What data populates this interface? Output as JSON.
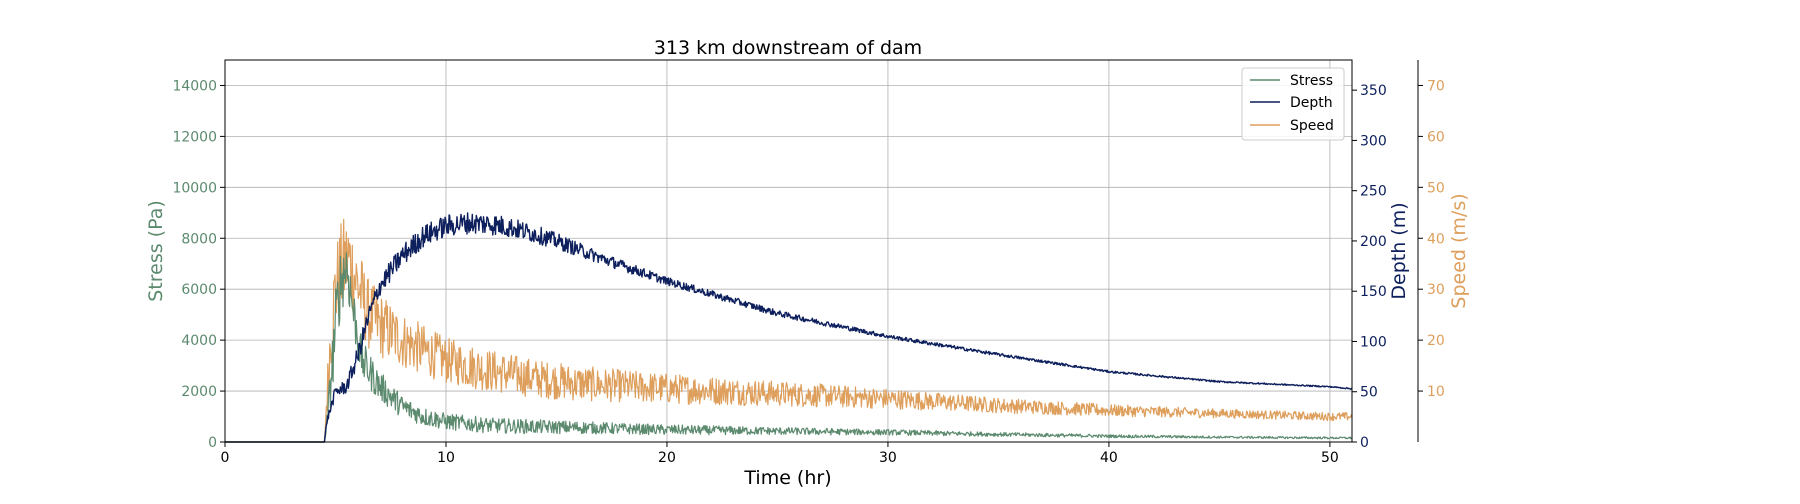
{
  "chart_data": {
    "type": "line",
    "title": "313 km downstream of dam",
    "xlabel": "Time (hr)",
    "xlim": [
      0,
      51
    ],
    "xticks": [
      0,
      10,
      20,
      30,
      40,
      50
    ],
    "grid": true,
    "legend_position": "top-right",
    "axes": {
      "stress": {
        "label": "Stress (Pa)",
        "ylim": [
          0,
          15000
        ],
        "ticks": [
          0,
          2000,
          4000,
          6000,
          8000,
          10000,
          12000,
          14000
        ],
        "color": "#5c8a6e"
      },
      "depth": {
        "label": "Depth (m)",
        "ylim": [
          0,
          380
        ],
        "ticks": [
          0,
          50,
          100,
          150,
          200,
          250,
          300,
          350
        ],
        "color": "#0d1f5c"
      },
      "speed": {
        "label": "Speed (m/s)",
        "ylim": [
          0,
          75
        ],
        "ticks": [
          10,
          20,
          30,
          40,
          50,
          60,
          70
        ],
        "color": "#de9f5c"
      }
    },
    "series": [
      {
        "name": "Stress",
        "axis": "stress",
        "color": "#5c8a6e",
        "x": [
          0,
          4.5,
          4.6,
          4.8,
          5.0,
          5.2,
          5.5,
          5.8,
          6.2,
          7,
          8,
          9,
          10,
          12,
          14,
          16,
          18,
          20,
          25,
          30,
          35,
          40,
          45,
          50,
          51
        ],
        "y": [
          0,
          0,
          600,
          2500,
          4500,
          6200,
          7000,
          5200,
          3200,
          2200,
          1400,
          1000,
          800,
          650,
          600,
          570,
          520,
          480,
          430,
          380,
          300,
          230,
          190,
          160,
          160
        ],
        "noise": [
          0,
          0,
          300,
          1000,
          1500,
          1400,
          1200,
          1000,
          800,
          600,
          450,
          380,
          330,
          300,
          280,
          250,
          220,
          200,
          150,
          110,
          80,
          60,
          45,
          40,
          40
        ]
      },
      {
        "name": "Depth",
        "axis": "depth",
        "color": "#0d1f5c",
        "x": [
          0,
          4.5,
          4.6,
          5.0,
          5.5,
          6.0,
          6.5,
          7,
          8,
          9,
          10,
          11,
          12,
          13,
          14,
          15,
          17,
          20,
          25,
          30,
          35,
          40,
          45,
          50,
          51
        ],
        "y": [
          0,
          0,
          20,
          50,
          55,
          85,
          125,
          155,
          185,
          205,
          215,
          218,
          217,
          213,
          207,
          200,
          183,
          160,
          128,
          105,
          87,
          70,
          60,
          55,
          53
        ],
        "noise": [
          0,
          0,
          3,
          6,
          7,
          10,
          10,
          10,
          11,
          11,
          11,
          11,
          11,
          10,
          9,
          8,
          6,
          4,
          3,
          2,
          1.5,
          1,
          0.8,
          0.6,
          0.6
        ]
      },
      {
        "name": "Speed",
        "axis": "speed",
        "color": "#de9f5c",
        "x": [
          0,
          4.5,
          4.6,
          4.8,
          5.0,
          5.3,
          5.6,
          6.0,
          6.5,
          7,
          8,
          9,
          10,
          12,
          14,
          16,
          18,
          20,
          25,
          30,
          35,
          40,
          45,
          50,
          51
        ],
        "y": [
          0,
          0,
          8,
          22,
          30,
          34,
          36,
          31,
          25,
          23,
          20,
          18,
          16,
          14,
          12.5,
          11.5,
          11,
          10.5,
          9.5,
          8.5,
          7.2,
          6.2,
          5.6,
          5,
          5
        ],
        "noise": [
          0,
          0,
          4,
          8,
          9,
          10,
          9,
          8,
          7,
          6.5,
          5.5,
          5,
          4.5,
          4.2,
          3.8,
          3.5,
          3.2,
          3,
          2.5,
          2,
          1.5,
          1.2,
          0.9,
          0.8,
          0.8
        ]
      }
    ]
  }
}
